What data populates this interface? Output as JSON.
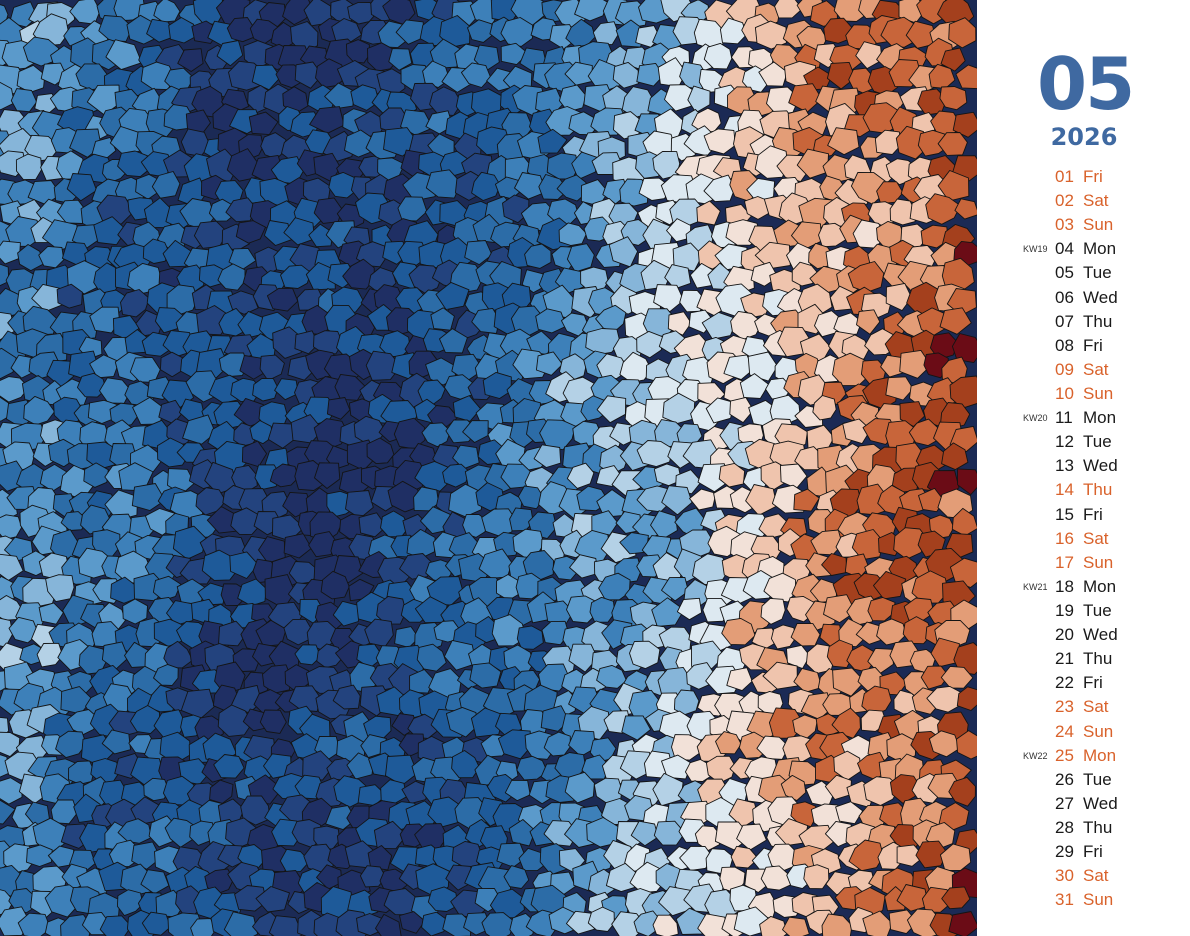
{
  "calendar": {
    "month": "05",
    "year": "2026",
    "holiday_color": "#d9622b",
    "normal_color": "#1a1a1a",
    "days": [
      {
        "num": "01",
        "name": "Fri",
        "kw": "",
        "holiday": true
      },
      {
        "num": "02",
        "name": "Sat",
        "kw": "",
        "holiday": true
      },
      {
        "num": "03",
        "name": "Sun",
        "kw": "",
        "holiday": true
      },
      {
        "num": "04",
        "name": "Mon",
        "kw": "KW19",
        "holiday": false
      },
      {
        "num": "05",
        "name": "Tue",
        "kw": "",
        "holiday": false
      },
      {
        "num": "06",
        "name": "Wed",
        "kw": "",
        "holiday": false
      },
      {
        "num": "07",
        "name": "Thu",
        "kw": "",
        "holiday": false
      },
      {
        "num": "08",
        "name": "Fri",
        "kw": "",
        "holiday": false
      },
      {
        "num": "09",
        "name": "Sat",
        "kw": "",
        "holiday": true
      },
      {
        "num": "10",
        "name": "Sun",
        "kw": "",
        "holiday": true
      },
      {
        "num": "11",
        "name": "Mon",
        "kw": "KW20",
        "holiday": false
      },
      {
        "num": "12",
        "name": "Tue",
        "kw": "",
        "holiday": false
      },
      {
        "num": "13",
        "name": "Wed",
        "kw": "",
        "holiday": false
      },
      {
        "num": "14",
        "name": "Thu",
        "kw": "",
        "holiday": true
      },
      {
        "num": "15",
        "name": "Fri",
        "kw": "",
        "holiday": false
      },
      {
        "num": "16",
        "name": "Sat",
        "kw": "",
        "holiday": true
      },
      {
        "num": "17",
        "name": "Sun",
        "kw": "",
        "holiday": true
      },
      {
        "num": "18",
        "name": "Mon",
        "kw": "KW21",
        "holiday": false
      },
      {
        "num": "19",
        "name": "Tue",
        "kw": "",
        "holiday": false
      },
      {
        "num": "20",
        "name": "Wed",
        "kw": "",
        "holiday": false
      },
      {
        "num": "21",
        "name": "Thu",
        "kw": "",
        "holiday": false
      },
      {
        "num": "22",
        "name": "Fri",
        "kw": "",
        "holiday": false
      },
      {
        "num": "23",
        "name": "Sat",
        "kw": "",
        "holiday": true
      },
      {
        "num": "24",
        "name": "Sun",
        "kw": "",
        "holiday": true
      },
      {
        "num": "25",
        "name": "Mon",
        "kw": "KW22",
        "holiday": true
      },
      {
        "num": "26",
        "name": "Tue",
        "kw": "",
        "holiday": false
      },
      {
        "num": "27",
        "name": "Wed",
        "kw": "",
        "holiday": false
      },
      {
        "num": "28",
        "name": "Thu",
        "kw": "",
        "holiday": false
      },
      {
        "num": "29",
        "name": "Fri",
        "kw": "",
        "holiday": false
      },
      {
        "num": "30",
        "name": "Sat",
        "kw": "",
        "holiday": true
      },
      {
        "num": "31",
        "name": "Sun",
        "kw": "",
        "holiday": true
      }
    ]
  },
  "artwork": {
    "palette": [
      "#1f2f64",
      "#23437e",
      "#1e5a99",
      "#2c6ca7",
      "#3d80b9",
      "#5b9acb",
      "#86b5d9",
      "#b4d1e6",
      "#dde9f1",
      "#f2e1d8",
      "#efc4ad",
      "#e39d77",
      "#c8653a",
      "#a4401d",
      "#6b0c16"
    ]
  }
}
